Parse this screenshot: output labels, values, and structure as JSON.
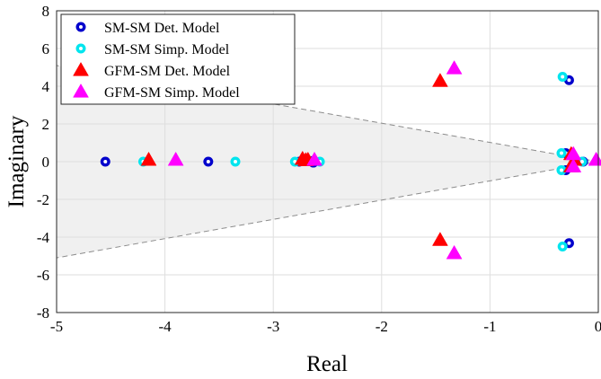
{
  "chart_data": {
    "type": "scatter",
    "xlabel": "Real",
    "ylabel": "Imaginary",
    "xlim": [
      -5,
      0
    ],
    "ylim": [
      -8,
      8
    ],
    "xticks": [
      -5,
      -4,
      -3,
      -2,
      -1,
      0
    ],
    "yticks": [
      -8,
      -6,
      -4,
      -2,
      0,
      2,
      4,
      6,
      8
    ],
    "xtick_labels": [
      "-5",
      "-4",
      "-3",
      "-2",
      "-1",
      "0"
    ],
    "ytick_labels": [
      "-8",
      "-6",
      "-4",
      "-2",
      "0",
      "2",
      "4",
      "6",
      "8"
    ],
    "grid": true,
    "legend_position": "top-left",
    "shaded_region": {
      "apex": [
        0,
        0
      ],
      "left_edge": [
        [
          -5,
          5.1
        ],
        [
          -5,
          -5.1
        ]
      ],
      "color": "#f0f0f0"
    },
    "series": [
      {
        "name": "SM-SM Det. Model",
        "marker": "circle-ring",
        "color": "#0000cc",
        "points": [
          [
            -4.55,
            0
          ],
          [
            -3.6,
            0
          ],
          [
            -2.76,
            0
          ],
          [
            -2.63,
            0.05
          ],
          [
            -2.63,
            -0.05
          ],
          [
            -0.27,
            4.32
          ],
          [
            -0.27,
            -4.32
          ],
          [
            -0.3,
            0.45
          ],
          [
            -0.3,
            -0.45
          ],
          [
            -0.14,
            0
          ]
        ]
      },
      {
        "name": "SM-SM Simp. Model",
        "marker": "circle-ring",
        "color": "#00e5ee",
        "points": [
          [
            -4.2,
            0
          ],
          [
            -3.35,
            0
          ],
          [
            -2.8,
            0
          ],
          [
            -2.57,
            0
          ],
          [
            -0.33,
            4.5
          ],
          [
            -0.33,
            -4.5
          ],
          [
            -0.34,
            0.45
          ],
          [
            -0.34,
            -0.45
          ],
          [
            -0.15,
            0
          ]
        ]
      },
      {
        "name": "GFM-SM Det. Model",
        "marker": "triangle",
        "color": "#ff0000",
        "points": [
          [
            -4.15,
            0.1
          ],
          [
            -2.73,
            0.15
          ],
          [
            -2.7,
            0.08
          ],
          [
            -2.68,
            0.1
          ],
          [
            -1.46,
            4.28
          ],
          [
            -1.46,
            -4.15
          ],
          [
            -0.25,
            0.4
          ],
          [
            -0.25,
            -0.25
          ],
          [
            -0.22,
            0.1
          ]
        ]
      },
      {
        "name": "GFM-SM Simp. Model",
        "marker": "triangle",
        "color": "#ff00ff",
        "points": [
          [
            -3.9,
            0.1
          ],
          [
            -2.62,
            0.1
          ],
          [
            -1.33,
            4.95
          ],
          [
            -1.33,
            -4.85
          ],
          [
            -0.23,
            0.4
          ],
          [
            -0.23,
            -0.25
          ],
          [
            -0.02,
            0.1
          ]
        ]
      }
    ]
  }
}
